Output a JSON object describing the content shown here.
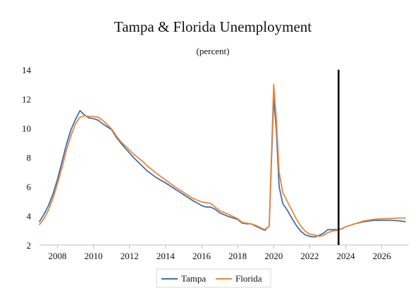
{
  "chart_data": {
    "type": "line",
    "title": "Tampa & Florida Unemployment",
    "subtitle": "(percent)",
    "xlabel": "",
    "ylabel": "",
    "xlim": [
      2007.0,
      2027.5
    ],
    "ylim": [
      2,
      14
    ],
    "x_ticks": [
      2008,
      2010,
      2012,
      2014,
      2016,
      2018,
      2020,
      2022,
      2024,
      2026
    ],
    "x_tick_labels": [
      "2008",
      "2010",
      "2012",
      "2014",
      "2016",
      "2018",
      "2020",
      "2022",
      "2024",
      "2026"
    ],
    "y_ticks": [
      2,
      4,
      6,
      8,
      10,
      12,
      14
    ],
    "y_tick_labels": [
      "2",
      "4",
      "6",
      "8",
      "10",
      "12",
      "14"
    ],
    "grid": false,
    "legend_position": "bottom",
    "vertical_marker_x": 2023.6,
    "series": [
      {
        "name": "Tampa",
        "color": "#3f6fb0",
        "x": [
          2007.0,
          2007.25,
          2007.5,
          2007.75,
          2008.0,
          2008.25,
          2008.5,
          2008.75,
          2009.0,
          2009.25,
          2009.5,
          2009.75,
          2010.0,
          2010.25,
          2010.5,
          2010.75,
          2011.0,
          2011.25,
          2011.5,
          2011.75,
          2012.0,
          2012.25,
          2012.5,
          2012.75,
          2013.0,
          2013.5,
          2014.0,
          2014.5,
          2015.0,
          2015.5,
          2016.0,
          2016.25,
          2016.5,
          2016.75,
          2017.0,
          2017.5,
          2018.0,
          2018.25,
          2018.5,
          2018.75,
          2019.0,
          2019.25,
          2019.5,
          2019.75,
          2020.0,
          2020.15,
          2020.3,
          2020.5,
          2020.75,
          2021.0,
          2021.25,
          2021.5,
          2021.75,
          2022.0,
          2022.25,
          2022.5,
          2022.75,
          2023.0,
          2023.25,
          2023.5,
          2023.75,
          2024.0,
          2024.5,
          2025.0,
          2025.5,
          2026.0,
          2026.5,
          2027.0,
          2027.3
        ],
        "values": [
          3.6,
          4.1,
          4.7,
          5.5,
          6.5,
          7.7,
          8.9,
          9.9,
          10.6,
          11.2,
          10.9,
          10.7,
          10.65,
          10.55,
          10.3,
          10.1,
          9.9,
          9.4,
          9.0,
          8.65,
          8.3,
          7.95,
          7.65,
          7.35,
          7.05,
          6.6,
          6.25,
          5.85,
          5.45,
          5.05,
          4.7,
          4.6,
          4.6,
          4.45,
          4.2,
          3.95,
          3.75,
          3.5,
          3.45,
          3.45,
          3.3,
          3.15,
          3.0,
          3.3,
          12.1,
          9.8,
          6.0,
          4.85,
          4.4,
          3.85,
          3.35,
          2.95,
          2.7,
          2.6,
          2.55,
          2.65,
          2.8,
          3.05,
          3.05,
          3.05,
          3.1,
          3.25,
          3.45,
          3.6,
          3.68,
          3.7,
          3.7,
          3.65,
          3.6
        ]
      },
      {
        "name": "Florida",
        "color": "#e8873a",
        "x": [
          2007.0,
          2007.25,
          2007.5,
          2007.75,
          2008.0,
          2008.25,
          2008.5,
          2008.75,
          2009.0,
          2009.25,
          2009.5,
          2009.75,
          2010.0,
          2010.25,
          2010.5,
          2010.75,
          2011.0,
          2011.25,
          2011.5,
          2011.75,
          2012.0,
          2012.25,
          2012.5,
          2012.75,
          2013.0,
          2013.5,
          2014.0,
          2014.5,
          2015.0,
          2015.5,
          2016.0,
          2016.25,
          2016.5,
          2016.75,
          2017.0,
          2017.5,
          2018.0,
          2018.25,
          2018.5,
          2018.75,
          2019.0,
          2019.25,
          2019.5,
          2019.75,
          2020.0,
          2020.15,
          2020.3,
          2020.5,
          2020.75,
          2021.0,
          2021.25,
          2021.5,
          2021.75,
          2022.0,
          2022.25,
          2022.5,
          2022.75,
          2023.0,
          2023.25,
          2023.5,
          2023.75,
          2024.0,
          2024.5,
          2025.0,
          2025.5,
          2026.0,
          2026.5,
          2027.0,
          2027.3
        ],
        "values": [
          3.4,
          3.8,
          4.4,
          5.2,
          6.2,
          7.3,
          8.5,
          9.5,
          10.3,
          10.75,
          10.85,
          10.8,
          10.8,
          10.75,
          10.55,
          10.25,
          9.95,
          9.5,
          9.1,
          8.8,
          8.5,
          8.2,
          7.95,
          7.7,
          7.4,
          6.9,
          6.45,
          6.0,
          5.6,
          5.2,
          4.95,
          4.9,
          4.85,
          4.6,
          4.35,
          4.1,
          3.8,
          3.55,
          3.5,
          3.45,
          3.35,
          3.2,
          3.05,
          3.3,
          13.0,
          10.5,
          7.0,
          5.6,
          5.0,
          4.4,
          3.8,
          3.3,
          2.95,
          2.75,
          2.7,
          2.6,
          2.65,
          2.85,
          2.95,
          3.0,
          3.1,
          3.25,
          3.45,
          3.65,
          3.75,
          3.8,
          3.82,
          3.85,
          3.85
        ]
      }
    ]
  }
}
